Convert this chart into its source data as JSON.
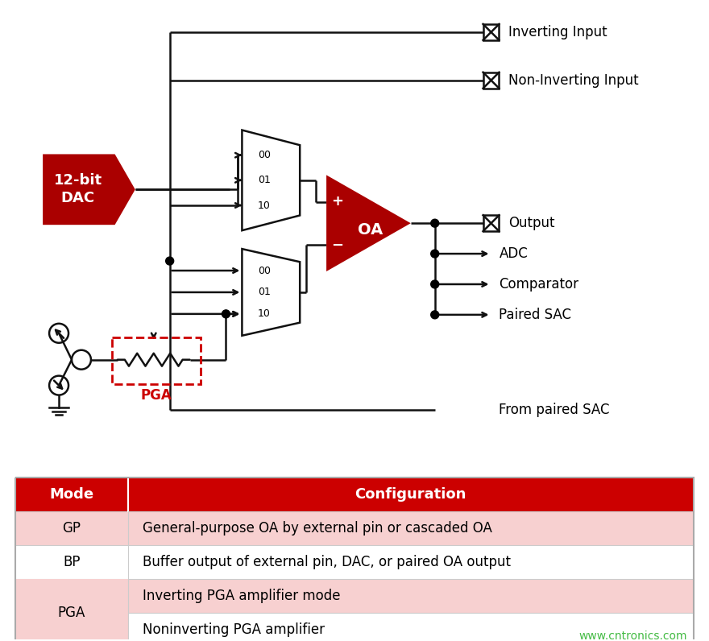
{
  "bg_color": "#ffffff",
  "dac_color": "#aa0000",
  "dac_text": "12-bit\nDAC",
  "oa_color": "#aa0000",
  "oa_text": "OA",
  "pga_box_color": "#cc0000",
  "pga_text": "PGA",
  "table_header_bg": "#cc0000",
  "table_header_color": "#ffffff",
  "table_row_bgs": [
    "#f7d0d0",
    "#ffffff",
    "#f7d0d0",
    "#ffffff"
  ],
  "table_modes": [
    "GP",
    "BP",
    "PGA",
    ""
  ],
  "table_configs": [
    "General-purpose OA by external pin or cascaded OA",
    "Buffer output of external pin, DAC, or paired OA output",
    "Inverting PGA amplifier mode",
    "Noninverting PGA amplifier"
  ],
  "output_labels": [
    "Inverting Input",
    "Non-Inverting Input",
    "Output",
    "ADC",
    "Comparator",
    "Paired SAC",
    "From paired SAC"
  ],
  "watermark": "www.cntronics.com",
  "watermark_color": "#44bb44",
  "line_color": "#111111",
  "lw": 1.8
}
